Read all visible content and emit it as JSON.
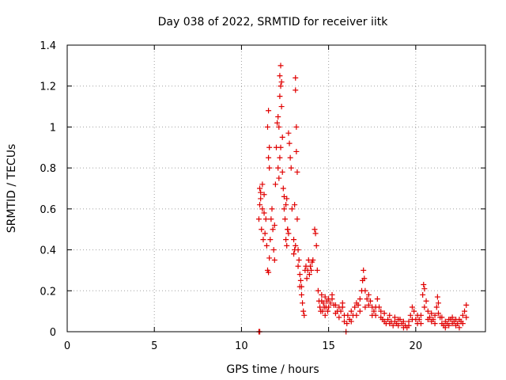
{
  "chart_data": {
    "type": "scatter",
    "title": "Day 038 of 2022, SRMTID for receiver iitk",
    "xlabel": "GPS time / hours",
    "ylabel": "SRMTID / TECUs",
    "xlim": [
      0,
      24
    ],
    "ylim": [
      0,
      1.4
    ],
    "xticks": [
      0,
      5,
      10,
      15,
      20
    ],
    "xtick_labels": [
      "0",
      "5",
      "10",
      "15",
      "20"
    ],
    "yticks": [
      0,
      0.2,
      0.4,
      0.6,
      0.8,
      1.0,
      1.2,
      1.4
    ],
    "ytick_labels": [
      "0",
      "0.2",
      "0.4",
      "0.6",
      "0.8",
      "1",
      "1.2",
      "1.4"
    ],
    "grid": true,
    "marker": "plus",
    "color": "#e00000",
    "series": [
      {
        "name": "SRMTID",
        "points": [
          [
            11.0,
            0.0
          ],
          [
            11.05,
            0.0
          ],
          [
            11.0,
            0.55
          ],
          [
            11.05,
            0.62
          ],
          [
            11.1,
            0.68
          ],
          [
            11.15,
            0.5
          ],
          [
            11.2,
            0.6
          ],
          [
            11.25,
            0.45
          ],
          [
            11.3,
            0.58
          ],
          [
            11.35,
            0.48
          ],
          [
            11.4,
            0.55
          ],
          [
            11.45,
            0.42
          ],
          [
            11.5,
            0.3
          ],
          [
            11.55,
            0.29
          ],
          [
            11.6,
            0.36
          ],
          [
            11.65,
            0.45
          ],
          [
            11.7,
            0.55
          ],
          [
            11.75,
            0.6
          ],
          [
            11.8,
            0.5
          ],
          [
            11.85,
            0.4
          ],
          [
            11.9,
            0.35
          ],
          [
            11.05,
            0.7
          ],
          [
            11.1,
            0.65
          ],
          [
            11.2,
            0.72
          ],
          [
            11.3,
            0.67
          ],
          [
            11.5,
            1.0
          ],
          [
            11.55,
            1.08
          ],
          [
            11.6,
            0.9
          ],
          [
            11.55,
            0.85
          ],
          [
            11.6,
            0.8
          ],
          [
            11.9,
            0.52
          ],
          [
            11.95,
            0.72
          ],
          [
            12.0,
            0.9
          ],
          [
            12.05,
            1.02
          ],
          [
            12.1,
            1.05
          ],
          [
            12.15,
            1.0
          ],
          [
            12.2,
            1.15
          ],
          [
            12.2,
            1.25
          ],
          [
            12.25,
            1.2
          ],
          [
            12.25,
            1.3
          ],
          [
            12.3,
            1.1
          ],
          [
            12.3,
            1.22
          ],
          [
            12.35,
            0.95
          ],
          [
            12.4,
            0.7
          ],
          [
            12.45,
            0.6
          ],
          [
            12.5,
            0.55
          ],
          [
            12.55,
            0.62
          ],
          [
            12.6,
            0.65
          ],
          [
            12.65,
            0.5
          ],
          [
            12.7,
            0.48
          ],
          [
            12.7,
            0.97
          ],
          [
            12.75,
            0.92
          ],
          [
            12.8,
            0.85
          ],
          [
            12.85,
            0.8
          ],
          [
            12.9,
            0.6
          ],
          [
            12.1,
            0.8
          ],
          [
            12.15,
            0.75
          ],
          [
            12.2,
            0.85
          ],
          [
            12.25,
            0.9
          ],
          [
            12.35,
            0.78
          ],
          [
            12.45,
            0.66
          ],
          [
            12.55,
            0.45
          ],
          [
            12.6,
            0.42
          ],
          [
            12.65,
            0.5
          ],
          [
            13.0,
            0.45
          ],
          [
            13.05,
            0.62
          ],
          [
            13.1,
            1.24
          ],
          [
            13.1,
            1.18
          ],
          [
            13.15,
            1.0
          ],
          [
            13.15,
            0.88
          ],
          [
            13.2,
            0.78
          ],
          [
            13.2,
            0.55
          ],
          [
            13.25,
            0.4
          ],
          [
            13.3,
            0.35
          ],
          [
            13.35,
            0.28
          ],
          [
            13.4,
            0.25
          ],
          [
            13.45,
            0.22
          ],
          [
            13.5,
            0.14
          ],
          [
            13.55,
            0.1
          ],
          [
            13.6,
            0.08
          ],
          [
            13.65,
            0.3
          ],
          [
            13.7,
            0.32
          ],
          [
            13.75,
            0.26
          ],
          [
            13.8,
            0.3
          ],
          [
            13.85,
            0.35
          ],
          [
            13.9,
            0.28
          ],
          [
            13.95,
            0.32
          ],
          [
            14.0,
            0.3
          ],
          [
            14.05,
            0.34
          ],
          [
            13.0,
            0.38
          ],
          [
            13.05,
            0.4
          ],
          [
            13.1,
            0.42
          ],
          [
            13.25,
            0.32
          ],
          [
            13.35,
            0.22
          ],
          [
            13.45,
            0.18
          ],
          [
            14.1,
            0.35
          ],
          [
            14.2,
            0.5
          ],
          [
            14.25,
            0.48
          ],
          [
            14.3,
            0.42
          ],
          [
            14.35,
            0.3
          ],
          [
            14.4,
            0.2
          ],
          [
            14.45,
            0.15
          ],
          [
            14.5,
            0.12
          ],
          [
            14.55,
            0.1
          ],
          [
            14.6,
            0.15
          ],
          [
            14.65,
            0.1
          ],
          [
            14.7,
            0.14
          ],
          [
            14.75,
            0.12
          ],
          [
            14.8,
            0.08
          ],
          [
            14.85,
            0.12
          ],
          [
            14.9,
            0.15
          ],
          [
            14.95,
            0.1
          ],
          [
            15.0,
            0.12
          ],
          [
            15.1,
            0.14
          ],
          [
            15.2,
            0.18
          ],
          [
            15.3,
            0.13
          ],
          [
            15.4,
            0.09
          ],
          [
            15.5,
            0.1
          ],
          [
            15.6,
            0.07
          ],
          [
            15.7,
            0.1
          ],
          [
            15.8,
            0.12
          ],
          [
            15.9,
            0.08
          ],
          [
            16.0,
            0.0
          ],
          [
            16.05,
            0.04
          ],
          [
            14.6,
            0.18
          ],
          [
            14.8,
            0.17
          ],
          [
            15.0,
            0.16
          ],
          [
            15.2,
            0.16
          ],
          [
            15.4,
            0.13
          ],
          [
            15.6,
            0.12
          ],
          [
            15.8,
            0.14
          ],
          [
            15.9,
            0.05
          ],
          [
            16.1,
            0.08
          ],
          [
            16.2,
            0.06
          ],
          [
            16.3,
            0.05
          ],
          [
            16.4,
            0.08
          ],
          [
            16.5,
            0.12
          ],
          [
            16.6,
            0.14
          ],
          [
            16.7,
            0.13
          ],
          [
            16.8,
            0.16
          ],
          [
            16.9,
            0.2
          ],
          [
            16.95,
            0.25
          ],
          [
            17.0,
            0.3
          ],
          [
            17.05,
            0.26
          ],
          [
            17.1,
            0.2
          ],
          [
            17.2,
            0.16
          ],
          [
            17.3,
            0.13
          ],
          [
            17.4,
            0.15
          ],
          [
            17.5,
            0.12
          ],
          [
            17.6,
            0.1
          ],
          [
            17.7,
            0.08
          ],
          [
            17.8,
            0.16
          ],
          [
            17.9,
            0.12
          ],
          [
            18.0,
            0.07
          ],
          [
            18.1,
            0.06
          ],
          [
            18.2,
            0.05
          ],
          [
            18.3,
            0.04
          ],
          [
            18.4,
            0.06
          ],
          [
            18.5,
            0.08
          ],
          [
            18.6,
            0.05
          ],
          [
            18.7,
            0.03
          ],
          [
            18.8,
            0.05
          ],
          [
            18.9,
            0.04
          ],
          [
            19.0,
            0.03
          ],
          [
            19.1,
            0.06
          ],
          [
            19.2,
            0.04
          ],
          [
            19.3,
            0.02
          ],
          [
            19.4,
            0.03
          ],
          [
            19.5,
            0.02
          ],
          [
            19.6,
            0.05
          ],
          [
            19.7,
            0.08
          ],
          [
            19.8,
            0.12
          ],
          [
            19.9,
            0.1
          ],
          [
            20.0,
            0.06
          ],
          [
            20.1,
            0.04
          ],
          [
            20.2,
            0.06
          ],
          [
            20.3,
            0.08
          ],
          [
            20.4,
            0.18
          ],
          [
            20.45,
            0.23
          ],
          [
            20.5,
            0.21
          ],
          [
            20.6,
            0.15
          ],
          [
            20.7,
            0.1
          ],
          [
            20.8,
            0.07
          ],
          [
            20.9,
            0.05
          ],
          [
            21.0,
            0.06
          ],
          [
            21.1,
            0.08
          ],
          [
            21.2,
            0.12
          ],
          [
            21.25,
            0.17
          ],
          [
            21.3,
            0.14
          ],
          [
            21.4,
            0.07
          ],
          [
            21.5,
            0.04
          ],
          [
            21.6,
            0.03
          ],
          [
            21.7,
            0.05
          ],
          [
            21.8,
            0.04
          ],
          [
            21.9,
            0.03
          ],
          [
            22.0,
            0.06
          ],
          [
            22.1,
            0.04
          ],
          [
            22.2,
            0.05
          ],
          [
            22.3,
            0.03
          ],
          [
            22.4,
            0.04
          ],
          [
            22.5,
            0.06
          ],
          [
            22.6,
            0.05
          ],
          [
            22.7,
            0.08
          ],
          [
            22.8,
            0.1
          ],
          [
            22.9,
            0.13
          ],
          [
            16.3,
            0.1
          ],
          [
            16.6,
            0.08
          ],
          [
            16.8,
            0.1
          ],
          [
            17.1,
            0.12
          ],
          [
            17.3,
            0.18
          ],
          [
            17.5,
            0.08
          ],
          [
            17.7,
            0.12
          ],
          [
            18.0,
            0.1
          ],
          [
            18.2,
            0.09
          ],
          [
            18.5,
            0.04
          ],
          [
            18.8,
            0.07
          ],
          [
            19.0,
            0.06
          ],
          [
            19.3,
            0.05
          ],
          [
            19.6,
            0.03
          ],
          [
            19.8,
            0.06
          ],
          [
            20.1,
            0.08
          ],
          [
            20.3,
            0.04
          ],
          [
            20.5,
            0.12
          ],
          [
            20.7,
            0.06
          ],
          [
            20.9,
            0.09
          ],
          [
            21.1,
            0.04
          ],
          [
            21.3,
            0.09
          ],
          [
            21.5,
            0.07
          ],
          [
            21.7,
            0.02
          ],
          [
            21.9,
            0.06
          ],
          [
            22.1,
            0.07
          ],
          [
            22.3,
            0.06
          ],
          [
            22.5,
            0.02
          ],
          [
            22.7,
            0.04
          ],
          [
            22.9,
            0.07
          ]
        ]
      }
    ]
  }
}
